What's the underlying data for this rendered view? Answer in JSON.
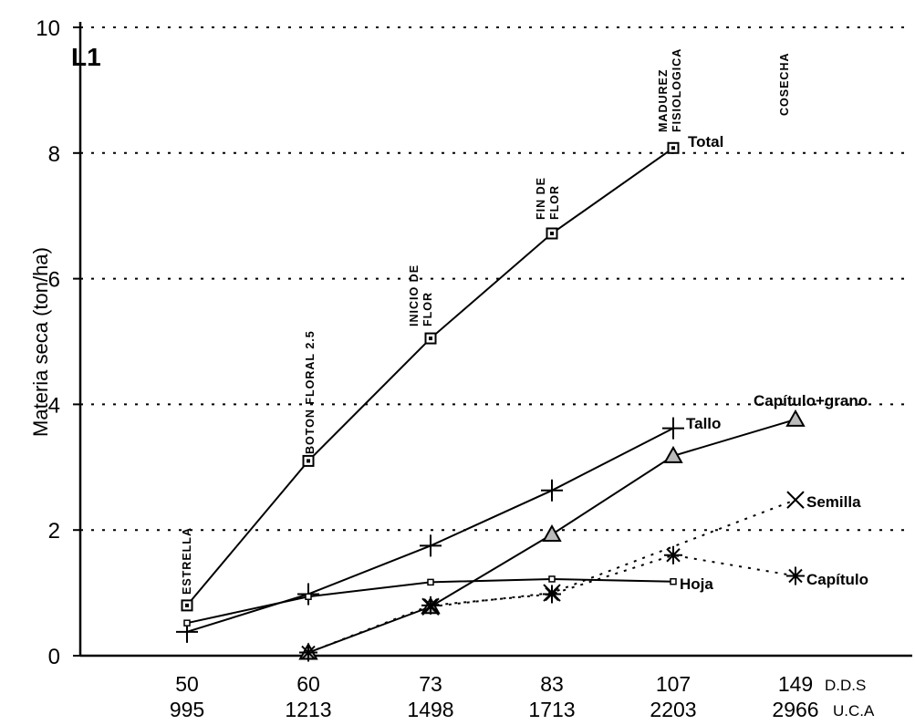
{
  "chart_data": {
    "type": "line",
    "panel_label": "L1",
    "ylabel": "Materia seca (ton/ha)",
    "ylim": [
      0,
      10
    ],
    "yticks": [
      "0",
      "2",
      "4",
      "6",
      "8",
      "10"
    ],
    "grid": "horizontal dotted",
    "x": [
      50,
      60,
      73,
      83,
      107,
      149
    ],
    "x_tick_labels": [
      "50",
      "60",
      "73",
      "83",
      "107",
      "149"
    ],
    "x_tick_labels_2": [
      "995",
      "1213",
      "1498",
      "1713",
      "2203",
      "2966"
    ],
    "x_unit_1": "D.D.S",
    "x_unit_2": "U.C.A",
    "stages": [
      {
        "x": 50,
        "lines": [
          "ESTRELLA"
        ]
      },
      {
        "x": 60,
        "lines": [
          "BOTON FLORAL 2.5"
        ]
      },
      {
        "x": 73,
        "lines": [
          "INICIO DE",
          "FLOR"
        ]
      },
      {
        "x": 83,
        "lines": [
          "FIN DE",
          "FLOR"
        ]
      },
      {
        "x": 107,
        "lines": [
          "MADUREZ",
          "FISIOLOGICA"
        ]
      },
      {
        "x": 149,
        "lines": [
          "COSECHA"
        ]
      }
    ],
    "series": [
      {
        "name": "Total",
        "marker": "square-dot",
        "style": "solid",
        "x": [
          50,
          60,
          73,
          83,
          107
        ],
        "y": [
          0.8,
          3.1,
          5.05,
          6.72,
          8.08
        ]
      },
      {
        "name": "Tallo",
        "marker": "plus",
        "style": "solid",
        "x": [
          50,
          60,
          73,
          83,
          107
        ],
        "y": [
          0.38,
          0.98,
          1.75,
          2.63,
          3.62
        ]
      },
      {
        "name": "Capítulo+grano",
        "marker": "triangle",
        "style": "solid",
        "x": [
          60,
          73,
          83,
          107,
          149
        ],
        "y": [
          0.05,
          0.78,
          1.93,
          3.18,
          3.76
        ]
      },
      {
        "name": "Hoja",
        "marker": "small-square",
        "style": "solid",
        "x": [
          50,
          60,
          73,
          83,
          107
        ],
        "y": [
          0.52,
          0.94,
          1.17,
          1.22,
          1.18
        ]
      },
      {
        "name": "Semilla",
        "marker": "x",
        "style": "dotted",
        "x": [
          73,
          83,
          149
        ],
        "y": [
          0.78,
          1.0,
          2.48
        ]
      },
      {
        "name": "Capítulo",
        "marker": "asterisk",
        "style": "dotted",
        "x": [
          60,
          73,
          83,
          107,
          149
        ],
        "y": [
          0.05,
          0.8,
          0.98,
          1.6,
          1.27
        ]
      }
    ]
  }
}
